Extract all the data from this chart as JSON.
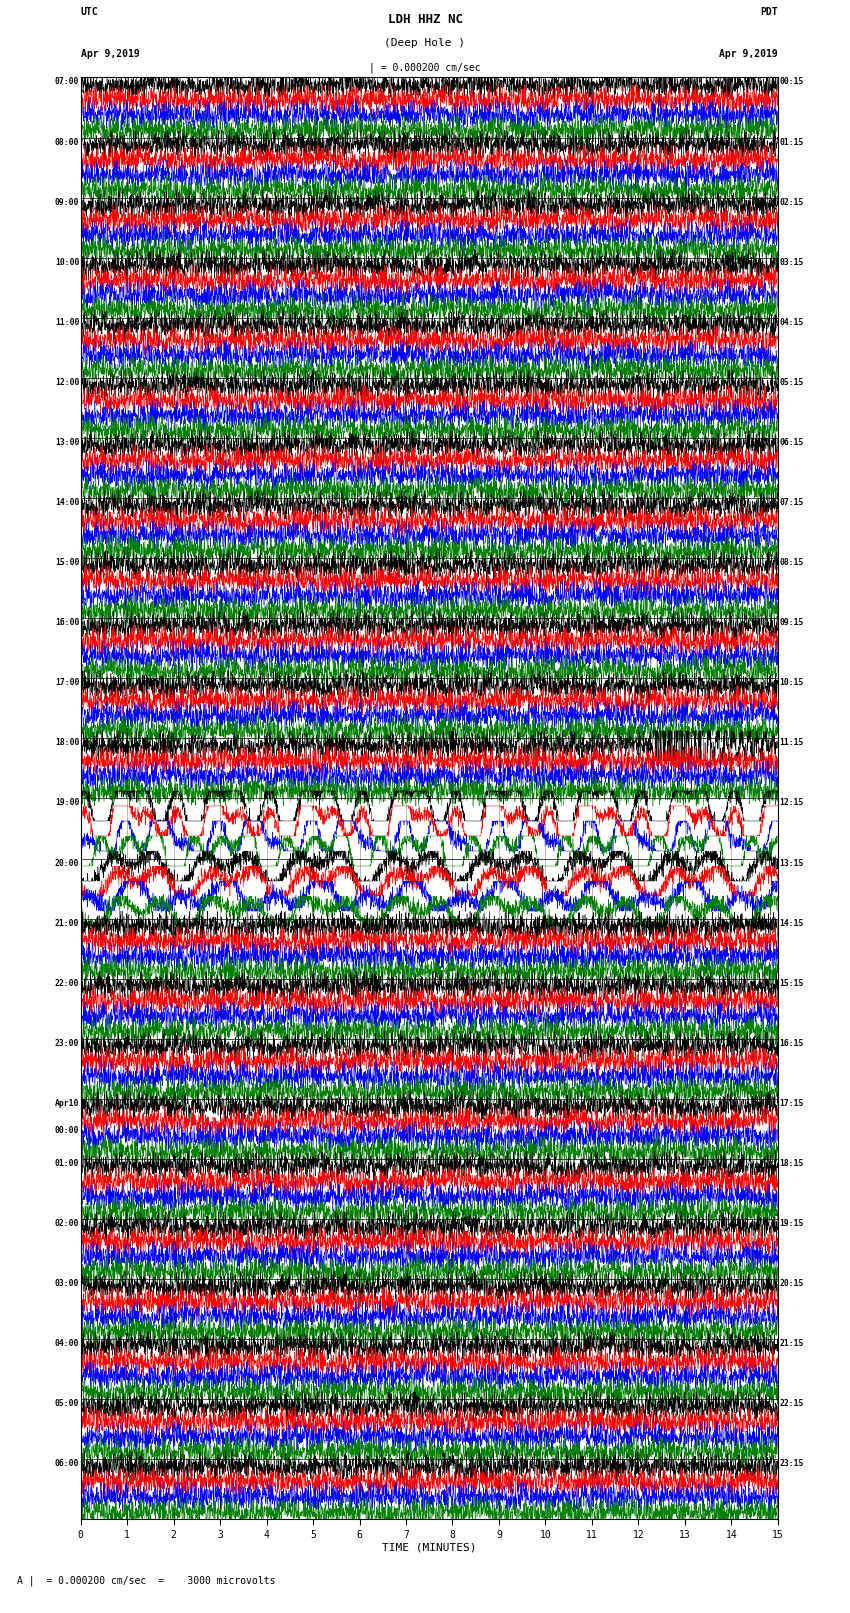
{
  "title_line1": "LDH HHZ NC",
  "title_line2": "(Deep Hole )",
  "title_line3": "| = 0.000200 cm/sec",
  "label_utc": "UTC",
  "label_pdt": "PDT",
  "date_left": "Apr 9,2019",
  "date_right": "Apr 9,2019",
  "xlabel": "TIME (MINUTES)",
  "footer": "A |  = 0.000200 cm/sec  =    3000 microvolts",
  "utc_times": [
    "07:00",
    "08:00",
    "09:00",
    "10:00",
    "11:00",
    "12:00",
    "13:00",
    "14:00",
    "15:00",
    "16:00",
    "17:00",
    "18:00",
    "19:00",
    "20:00",
    "21:00",
    "22:00",
    "23:00",
    "Apr10\n00:00",
    "01:00",
    "02:00",
    "03:00",
    "04:00",
    "05:00",
    "06:00"
  ],
  "pdt_times": [
    "00:15",
    "01:15",
    "02:15",
    "03:15",
    "04:15",
    "05:15",
    "06:15",
    "07:15",
    "08:15",
    "09:15",
    "10:15",
    "11:15",
    "12:15",
    "13:15",
    "14:15",
    "15:15",
    "16:15",
    "17:15",
    "18:15",
    "19:15",
    "20:15",
    "21:15",
    "22:15",
    "23:15"
  ],
  "n_rows": 24,
  "traces_per_row": 4,
  "colors": [
    "black",
    "red",
    "blue",
    "green"
  ],
  "bg_color": "#ffffff",
  "xlim": [
    0,
    15
  ],
  "xticks": [
    0,
    1,
    2,
    3,
    4,
    5,
    6,
    7,
    8,
    9,
    10,
    11,
    12,
    13,
    14,
    15
  ]
}
